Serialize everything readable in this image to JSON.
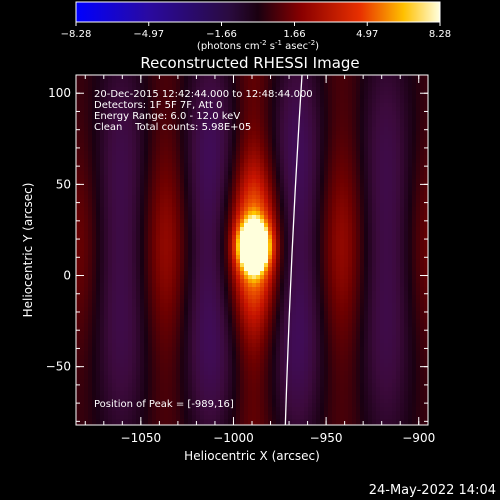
{
  "colorbar": {
    "ticks": [
      "-8.28",
      "-4.97",
      "-1.66",
      "1.66",
      "4.97",
      "8.28"
    ],
    "range": [
      -8.28,
      8.28
    ],
    "unit_label": {
      "prefix": "(photons cm",
      "exp1": "-2",
      "mid1": " s",
      "exp2": "-1",
      "mid2": " asec",
      "exp3": "-2",
      "suffix": ")"
    }
  },
  "chart_data": {
    "type": "heatmap",
    "title": "Reconstructed RHESSI Image",
    "xlabel": "Heliocentric X (arcsec)",
    "ylabel": "Heliocentric Y (arcsec)",
    "xlim": [
      -1085,
      -895
    ],
    "ylim": [
      -82,
      110
    ],
    "x_ticks": [
      -1050,
      -1000,
      -950,
      -900
    ],
    "y_ticks": [
      -50,
      0,
      50,
      100
    ],
    "x_tick_labels": [
      "−1050",
      "−1000",
      "−950",
      "−900"
    ],
    "y_tick_labels": [
      "−50",
      "0",
      "50",
      "100"
    ],
    "peak": [
      -989,
      16
    ],
    "limb_arc_x_at_top": -963,
    "limb_arc_x_at_bottom": -972,
    "info_lines": [
      "20-Dec-2015 12:42:44.000 to 12:48:44.000",
      "Detectors: 1F 5F 7F, Att 0",
      "Energy Range: 6.0 - 12.0 keV",
      "Clean    Total counts: 5.98E+05"
    ],
    "peak_label": "Position of Peak = [-989,16]"
  },
  "footer": {
    "timestamp": "24-May-2022 14:04"
  }
}
